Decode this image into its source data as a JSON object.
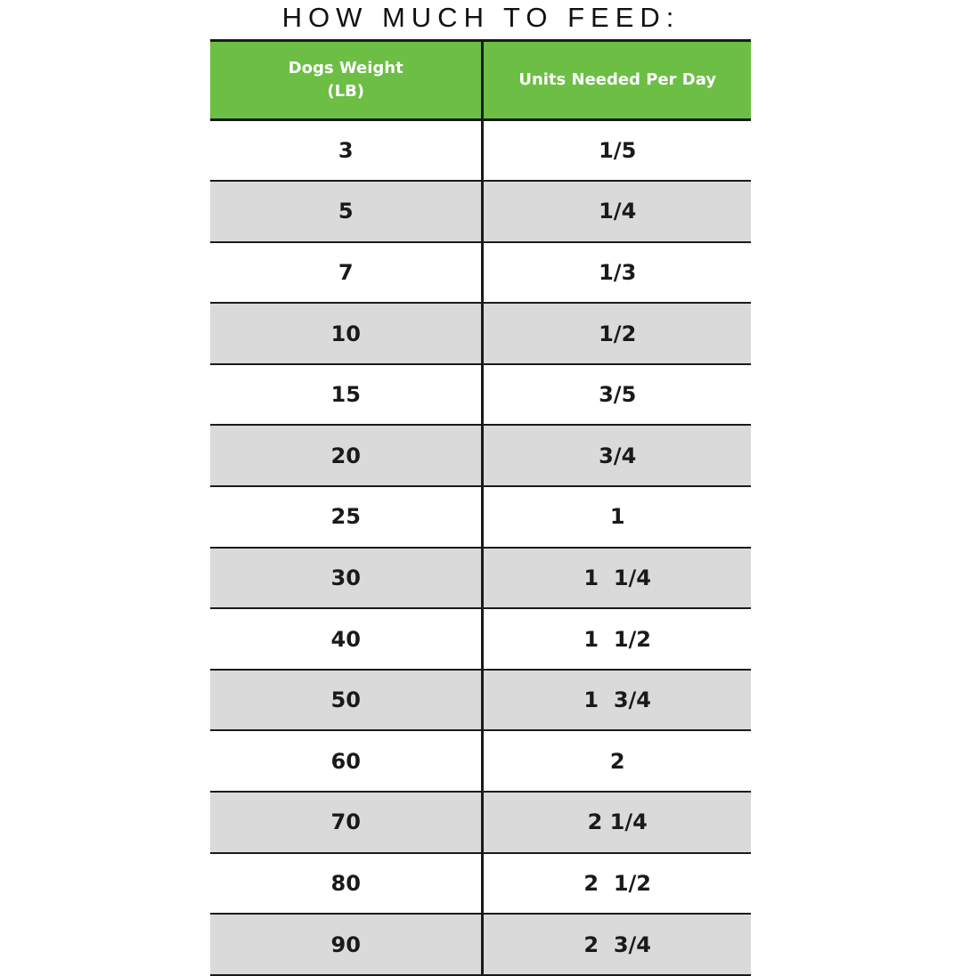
{
  "title": "HOW MUCH TO FEED:",
  "table": {
    "header": {
      "col1_line1": "Dogs Weight",
      "col1_line2": "(LB)",
      "col2": "Units Needed Per Day"
    },
    "rows": [
      {
        "weight": "3",
        "units": "1/5"
      },
      {
        "weight": "5",
        "units": "1/4"
      },
      {
        "weight": "7",
        "units": "1/3"
      },
      {
        "weight": "10",
        "units": "1/2"
      },
      {
        "weight": "15",
        "units": "3/5"
      },
      {
        "weight": "20",
        "units": "3/4"
      },
      {
        "weight": "25",
        "units": "1"
      },
      {
        "weight": "30",
        "units": "1  1/4"
      },
      {
        "weight": "40",
        "units": "1  1/2"
      },
      {
        "weight": "50",
        "units": "1  3/4"
      },
      {
        "weight": "60",
        "units": "2"
      },
      {
        "weight": "70",
        "units": "2 1/4"
      },
      {
        "weight": "80",
        "units": "2  1/2"
      },
      {
        "weight": "90",
        "units": "2  3/4"
      }
    ]
  },
  "colors": {
    "header_green": "#6CBE45",
    "row_alt_gray": "#DADADA",
    "row_white": "#FFFFFF",
    "border_black": "#1A1A1A",
    "header_text": "#FFFFFF",
    "body_text": "#1A1A1A"
  },
  "chart_data": {
    "type": "table",
    "title": "HOW MUCH TO FEED:",
    "columns": [
      "Dogs Weight (LB)",
      "Units Needed Per Day"
    ],
    "rows": [
      [
        "3",
        "1/5"
      ],
      [
        "5",
        "1/4"
      ],
      [
        "7",
        "1/3"
      ],
      [
        "10",
        "1/2"
      ],
      [
        "15",
        "3/5"
      ],
      [
        "20",
        "3/4"
      ],
      [
        "25",
        "1"
      ],
      [
        "30",
        "1 1/4"
      ],
      [
        "40",
        "1 1/2"
      ],
      [
        "50",
        "1 3/4"
      ],
      [
        "60",
        "2"
      ],
      [
        "70",
        "2 1/4"
      ],
      [
        "80",
        "2 1/2"
      ],
      [
        "90",
        "2 3/4"
      ]
    ],
    "layout": {
      "header_background": "#6CBE45",
      "alternating_row_background": "#DADADA",
      "last_row_clipped_at_bottom": true
    }
  }
}
